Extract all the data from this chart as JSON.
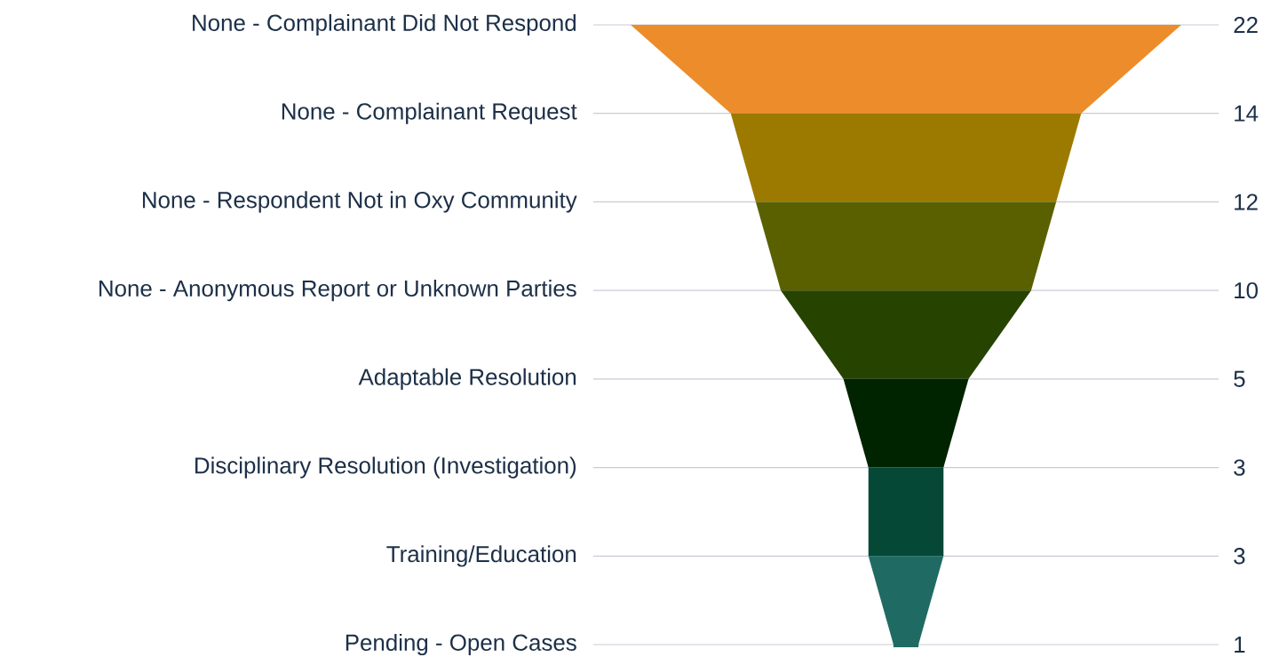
{
  "chart_data": {
    "type": "other",
    "categories": [
      "None - Complainant Did Not Respond",
      "None - Complainant Request",
      "None - Respondent Not in Oxy Community",
      "None - Anonymous Report or Unknown Parties",
      "Adaptable Resolution",
      "Disciplinary Resolution (Investigation)",
      "Training/Education",
      "Pending - Open Cases"
    ],
    "values": [
      22,
      14,
      12,
      10,
      5,
      3,
      3,
      1
    ],
    "colors": [
      "#ec8c2a",
      "#9c7a00",
      "#5a6000",
      "#264300",
      "#002300",
      "#054835",
      "#1f6b63",
      "#1f6b63"
    ],
    "data_labels": true
  }
}
